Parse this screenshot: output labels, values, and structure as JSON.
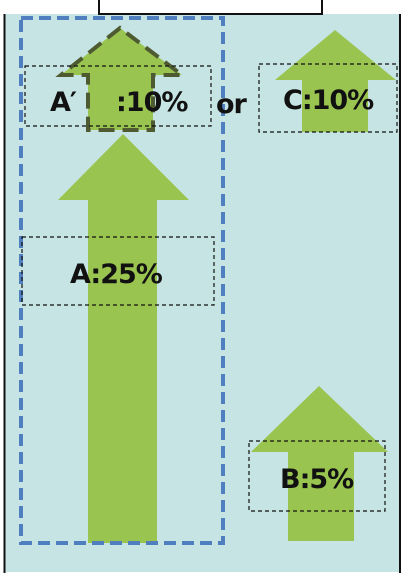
{
  "header_fragment": "…",
  "labels": {
    "a_prime": "A′",
    "a_prime_value": ":10%",
    "or": "or",
    "c": "C:10%",
    "a": "A:25%",
    "b": "B:5%"
  },
  "colors": {
    "panel_bg": "#c5e4e3",
    "arrow_fill": "#9ac450",
    "dashed_blue": "#4f7fbf",
    "dashed_olive": "#4e5b31",
    "label_border": "#111111",
    "frame": "#111111"
  },
  "shares_percent": {
    "a_prime": 10,
    "c": 10,
    "a": 25,
    "b": 5
  }
}
